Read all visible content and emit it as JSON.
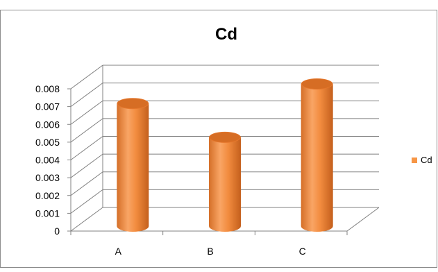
{
  "chart_data": {
    "type": "bar",
    "style": "3d-cylinder",
    "title": "Cd",
    "categories": [
      "A",
      "B",
      "C"
    ],
    "series": [
      {
        "name": "Cd",
        "values": [
          0.0069,
          0.005,
          0.008
        ]
      }
    ],
    "ylim": [
      0,
      0.008
    ],
    "yticks": [
      "0",
      "0.001",
      "0.002",
      "0.003",
      "0.004",
      "0.005",
      "0.006",
      "0.007",
      "0.008"
    ],
    "grid": true,
    "legend": "right",
    "colors": {
      "bar": "#F79646",
      "bar_dark": "#C8641E",
      "bar_top": "#E6782D",
      "grid": "#808080",
      "border": "#8C8C8C"
    }
  }
}
